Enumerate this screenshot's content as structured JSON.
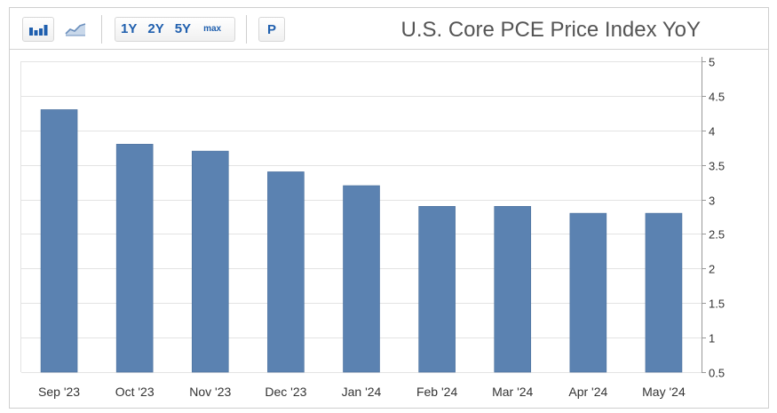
{
  "toolbar": {
    "bar_icon": "bar-chart-icon",
    "line_icon": "line-chart-icon",
    "ranges": [
      "1Y",
      "2Y",
      "5Y",
      "max"
    ],
    "p_label": "P"
  },
  "chart_data": {
    "type": "bar",
    "title": "U.S. Core PCE Price Index YoY",
    "categories": [
      "Sep '23",
      "Oct '23",
      "Nov '23",
      "Dec '23",
      "Jan '24",
      "Feb '24",
      "Mar '24",
      "Apr '24",
      "May '24"
    ],
    "values": [
      4.3,
      3.8,
      3.7,
      3.4,
      3.2,
      2.9,
      2.9,
      2.8,
      2.8
    ],
    "ylim": [
      0.5,
      5
    ],
    "yticks": [
      0.5,
      1,
      1.5,
      2,
      2.5,
      3,
      3.5,
      4,
      4.5,
      5
    ],
    "grid": true,
    "y_axis_side": "right",
    "bar_color": "#5b82b1",
    "xlabel": "",
    "ylabel": ""
  }
}
